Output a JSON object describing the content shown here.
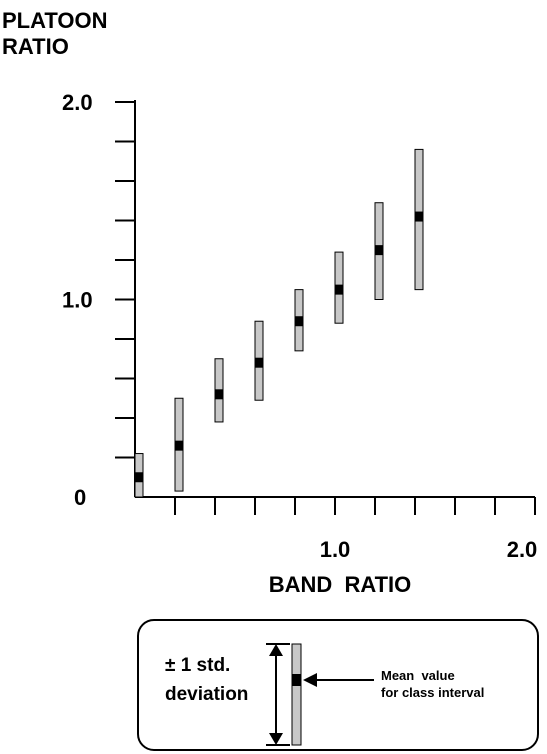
{
  "chart_data": {
    "type": "range",
    "ylabel_lines": [
      "PLATOON",
      "RATIO"
    ],
    "xlabel": "BAND  RATIO",
    "xlim": [
      0,
      2.0
    ],
    "ylim": [
      0,
      2.0
    ],
    "x_tick_step": 0.2,
    "y_tick_step": 0.2,
    "x_tick_labels": [
      {
        "value": 1.0,
        "label": "1.0"
      },
      {
        "value": 2.0,
        "label": "2.0"
      }
    ],
    "y_tick_labels": [
      {
        "value": 0,
        "label": "0"
      },
      {
        "value": 1.0,
        "label": "1.0"
      },
      {
        "value": 2.0,
        "label": "2.0"
      }
    ],
    "series": [
      {
        "points": [
          {
            "x": 0.1,
            "mean": 0.1,
            "low": 0.0,
            "high": 0.22
          },
          {
            "x": 0.3,
            "mean": 0.26,
            "low": 0.03,
            "high": 0.5
          },
          {
            "x": 0.5,
            "mean": 0.52,
            "low": 0.38,
            "high": 0.7
          },
          {
            "x": 0.7,
            "mean": 0.68,
            "low": 0.49,
            "high": 0.89
          },
          {
            "x": 0.9,
            "mean": 0.89,
            "low": 0.74,
            "high": 1.05
          },
          {
            "x": 1.1,
            "mean": 1.05,
            "low": 0.88,
            "high": 1.24
          },
          {
            "x": 1.3,
            "mean": 1.25,
            "low": 1.0,
            "high": 1.49
          },
          {
            "x": 1.5,
            "mean": 1.42,
            "low": 1.05,
            "high": 1.76
          }
        ]
      }
    ],
    "colors": {
      "bar_fill": "#c8c8c8",
      "mean_marker": "#000000",
      "axis": "#000000"
    }
  },
  "legend": {
    "std_line1": "± 1 std.",
    "std_line2": "deviation",
    "mean_line1": "Mean  value",
    "mean_line2": "for class interval"
  }
}
